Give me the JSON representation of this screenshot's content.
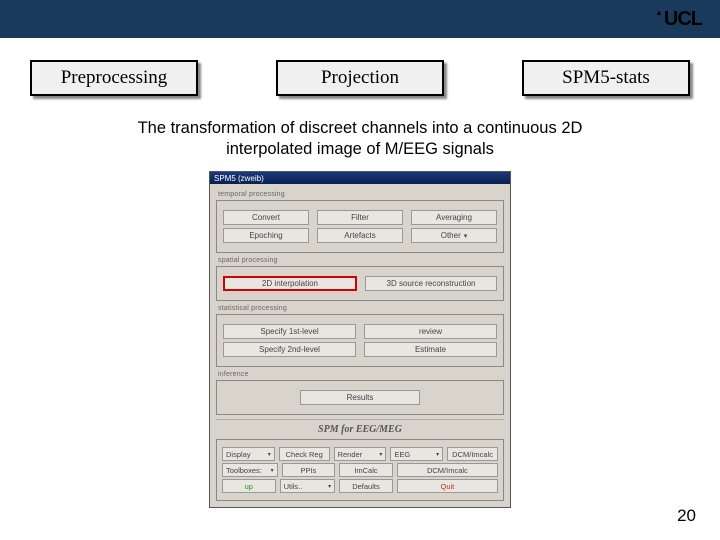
{
  "header": {
    "logo_text": "UCL",
    "bar_color": "#1a3a5c"
  },
  "nav": {
    "preprocessing": "Preprocessing",
    "projection": "Projection",
    "stats": "SPM5-stats"
  },
  "subtitle": "The transformation of discreet channels into a continuous 2D interpolated image of M/EEG signals",
  "spm": {
    "title": "SPM5 (zweib)",
    "sections": {
      "temporal_label": "temporal processing",
      "temporal_row1": {
        "convert": "Convert",
        "filter": "Filter",
        "averaging": "Averaging"
      },
      "temporal_row2": {
        "epoching": "Epoching",
        "artefacts": "Artefacts",
        "other": "Other"
      },
      "spatial_label": "spatial processing",
      "spatial_row": {
        "interp2d": "2D interpolation",
        "source3d": "3D source reconstruction"
      },
      "stats_label": "statistical processing",
      "stats_row1": {
        "specify1": "Specify 1st-level",
        "review": "review"
      },
      "stats_row2": {
        "specify2": "Specify 2nd-level",
        "estimate": "Estimate"
      },
      "inference_label": "inference",
      "results": "Results"
    },
    "banner": "SPM for EEG/MEG",
    "bottom": {
      "row1": {
        "display": "Display",
        "checkreg": "Check Reg",
        "render": "Render",
        "eeg": "EEG",
        "dcm": "DCM/Imcalc"
      },
      "row2": {
        "toolboxes": "Toolboxes:",
        "ppis": "PPIs",
        "imcalc": "ImCalc",
        "dcm2": "DCM/Imcalc"
      },
      "row3": {
        "up": "up",
        "utils": "Utils..",
        "defaults": "Defaults",
        "quit": "Quit"
      }
    }
  },
  "page_number": "20"
}
